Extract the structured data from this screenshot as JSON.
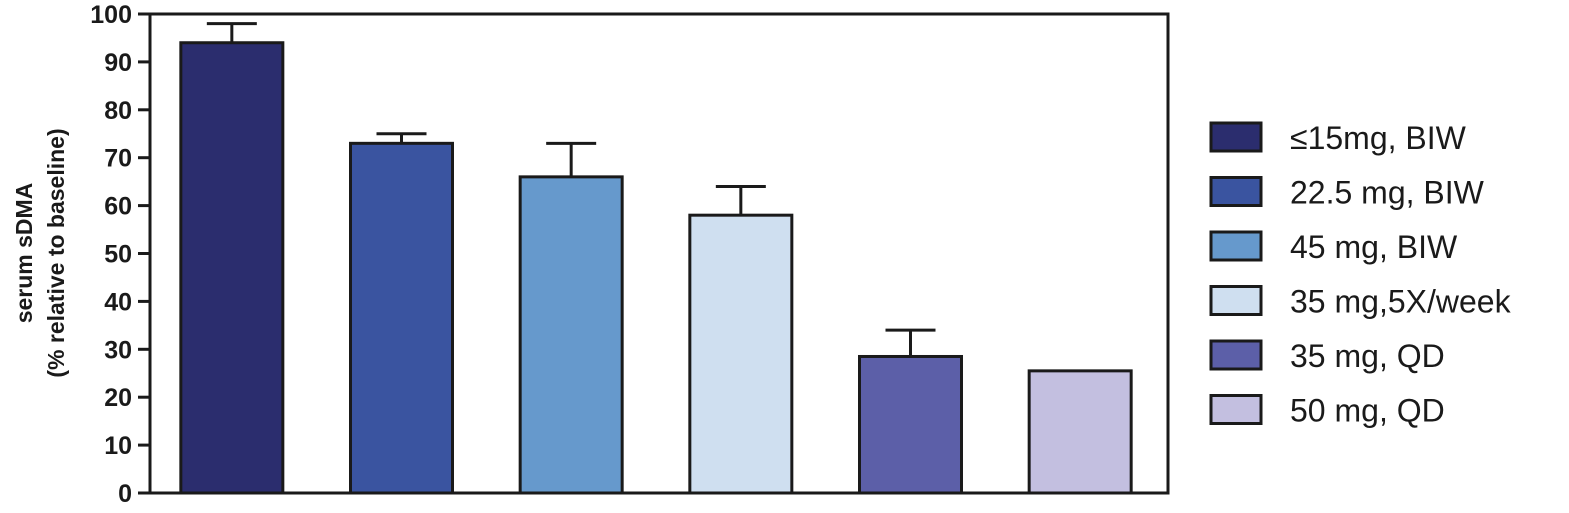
{
  "chart_data": {
    "type": "bar",
    "title": "",
    "xlabel": "",
    "ylabel_lines": [
      "serum sDMA",
      "(% relative to baseline)"
    ],
    "ylim": [
      0,
      100
    ],
    "yticks": [
      0,
      10,
      20,
      30,
      40,
      50,
      60,
      70,
      80,
      90,
      100
    ],
    "grid": false,
    "legend_position": "right",
    "series": [
      {
        "name": "≤15mg, BIW",
        "value": 94,
        "error": 4,
        "color": "#2b2d6e"
      },
      {
        "name": "22.5 mg, BIW",
        "value": 73,
        "error": 2,
        "color": "#3a54a0"
      },
      {
        "name": "45 mg, BIW",
        "value": 66,
        "error": 7,
        "color": "#6699cc"
      },
      {
        "name": "35 mg,5X/week",
        "value": 58,
        "error": 6,
        "color": "#cfdff0"
      },
      {
        "name": "35 mg, QD",
        "value": 28.5,
        "error": 5.5,
        "color": "#5c5fa8"
      },
      {
        "name": "50 mg, QD",
        "value": 25.5,
        "error": 0,
        "color": "#c3bfe0"
      }
    ]
  }
}
